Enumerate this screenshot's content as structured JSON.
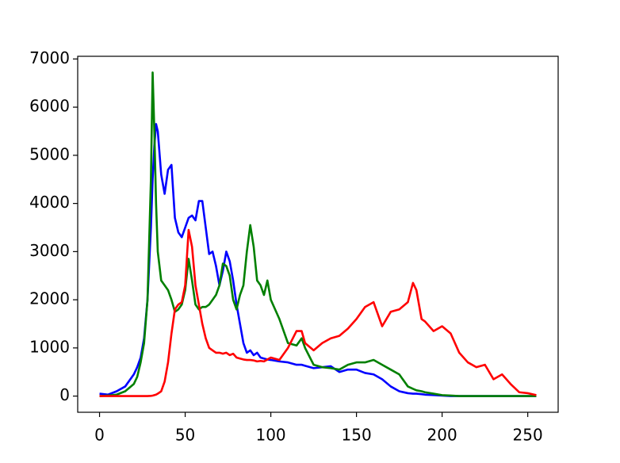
{
  "chart_data": {
    "type": "line",
    "x": [
      0,
      5,
      10,
      15,
      20,
      22,
      24,
      26,
      28,
      30,
      31,
      32,
      33,
      34,
      36,
      38,
      40,
      42,
      44,
      46,
      48,
      50,
      52,
      54,
      56,
      58,
      60,
      62,
      64,
      66,
      68,
      70,
      72,
      74,
      76,
      78,
      80,
      82,
      84,
      86,
      88,
      90,
      92,
      94,
      96,
      98,
      100,
      105,
      110,
      115,
      118,
      120,
      125,
      130,
      135,
      140,
      145,
      150,
      155,
      160,
      165,
      170,
      175,
      180,
      183,
      185,
      188,
      190,
      195,
      200,
      205,
      210,
      215,
      220,
      225,
      230,
      235,
      240,
      245,
      250,
      255
    ],
    "series": [
      {
        "name": "b",
        "color": "#0000ff",
        "values": [
          50,
          30,
          100,
          200,
          450,
          600,
          800,
          1200,
          2000,
          3500,
          4500,
          5200,
          5650,
          5500,
          4600,
          4200,
          4700,
          4800,
          3700,
          3400,
          3300,
          3500,
          3700,
          3750,
          3650,
          4050,
          4050,
          3500,
          2950,
          3000,
          2700,
          2300,
          2600,
          3000,
          2800,
          2400,
          1900,
          1500,
          1100,
          900,
          950,
          850,
          900,
          800,
          780,
          760,
          750,
          720,
          700,
          650,
          650,
          630,
          580,
          600,
          620,
          500,
          550,
          550,
          480,
          450,
          350,
          200,
          100,
          60,
          50,
          50,
          40,
          30,
          20,
          10,
          0,
          0,
          0,
          0,
          0,
          0,
          0,
          0,
          0,
          0,
          0
        ]
      },
      {
        "name": "g",
        "color": "#008000",
        "values": [
          0,
          10,
          30,
          100,
          250,
          400,
          700,
          1100,
          2000,
          4500,
          6720,
          5500,
          4000,
          3000,
          2400,
          2300,
          2200,
          2000,
          1750,
          1800,
          1900,
          2200,
          2850,
          2400,
          1900,
          1800,
          1850,
          1850,
          1900,
          2000,
          2100,
          2300,
          2750,
          2700,
          2500,
          2000,
          1800,
          2100,
          2300,
          3000,
          3550,
          3100,
          2400,
          2300,
          2100,
          2400,
          2000,
          1600,
          1100,
          1050,
          1200,
          1000,
          650,
          600,
          580,
          550,
          650,
          700,
          700,
          750,
          650,
          550,
          450,
          200,
          150,
          120,
          100,
          80,
          50,
          20,
          10,
          0,
          0,
          0,
          0,
          0,
          0,
          0,
          0,
          0,
          0
        ]
      },
      {
        "name": "r",
        "color": "#ff0000",
        "values": [
          0,
          0,
          0,
          0,
          0,
          0,
          0,
          0,
          0,
          5,
          10,
          20,
          30,
          50,
          100,
          300,
          700,
          1300,
          1800,
          1900,
          1950,
          2300,
          3450,
          3100,
          2300,
          1900,
          1500,
          1200,
          1000,
          950,
          900,
          900,
          880,
          900,
          850,
          880,
          800,
          780,
          760,
          750,
          750,
          740,
          720,
          730,
          720,
          760,
          800,
          750,
          1000,
          1350,
          1350,
          1100,
          950,
          1100,
          1200,
          1250,
          1400,
          1600,
          1850,
          1950,
          1450,
          1750,
          1800,
          1950,
          2350,
          2200,
          1600,
          1550,
          1350,
          1450,
          1300,
          900,
          700,
          600,
          650,
          350,
          450,
          250,
          80,
          60,
          20
        ]
      }
    ],
    "xlim": [
      -12.75,
      267.75
    ],
    "ylim": [
      -336,
      7056
    ],
    "xticks": [
      0,
      50,
      100,
      150,
      200,
      250
    ],
    "yticks": [
      0,
      1000,
      2000,
      3000,
      4000,
      5000,
      6000,
      7000
    ],
    "grid": false
  }
}
